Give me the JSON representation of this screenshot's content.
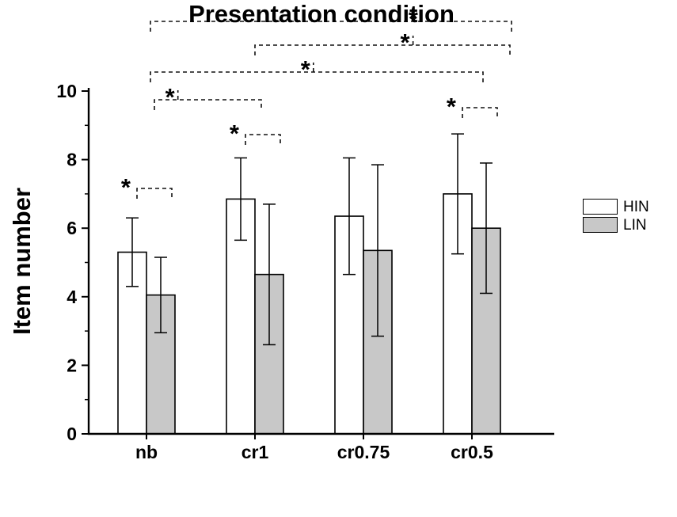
{
  "figure": {
    "background": "#ffffff",
    "axis_color": "#000000",
    "bar_outline": "#000000"
  },
  "chart_data": {
    "type": "bar",
    "title": "",
    "xlabel": "Presentation condition",
    "ylabel": "Item number",
    "ylim": [
      0,
      10
    ],
    "yticks": [
      0,
      2,
      4,
      6,
      8,
      10
    ],
    "categories": [
      "nb",
      "cr1",
      "cr0.75",
      "cr0.5"
    ],
    "series": [
      {
        "name": "HIN",
        "fill": "#ffffff",
        "values": [
          5.3,
          6.85,
          6.35,
          7.0
        ],
        "errors": [
          1.0,
          1.2,
          1.7,
          1.75
        ]
      },
      {
        "name": "LIN",
        "fill": "#c8c8c8",
        "values": [
          4.05,
          4.65,
          5.35,
          6.0
        ],
        "errors": [
          1.1,
          2.05,
          2.5,
          1.9
        ]
      }
    ],
    "legend": {
      "position": "right",
      "entries": [
        "HIN",
        "LIN"
      ]
    },
    "significance": {
      "marker": "*",
      "within_group": [
        {
          "category": "nb",
          "label": "*"
        },
        {
          "category": "cr1",
          "label": "*"
        },
        {
          "category": "cr0.5",
          "label": "*"
        }
      ],
      "between_groups": [
        {
          "from": "nb",
          "to": "cr0.5",
          "series": "LIN",
          "label": "*"
        },
        {
          "from": "cr1",
          "to": "cr0.5",
          "series": "LIN",
          "label": "*"
        },
        {
          "from": "nb",
          "to": "cr0.5",
          "series": "HIN",
          "label": "*"
        },
        {
          "from": "nb",
          "to": "cr1",
          "series": "HIN",
          "label": "*"
        }
      ]
    }
  }
}
